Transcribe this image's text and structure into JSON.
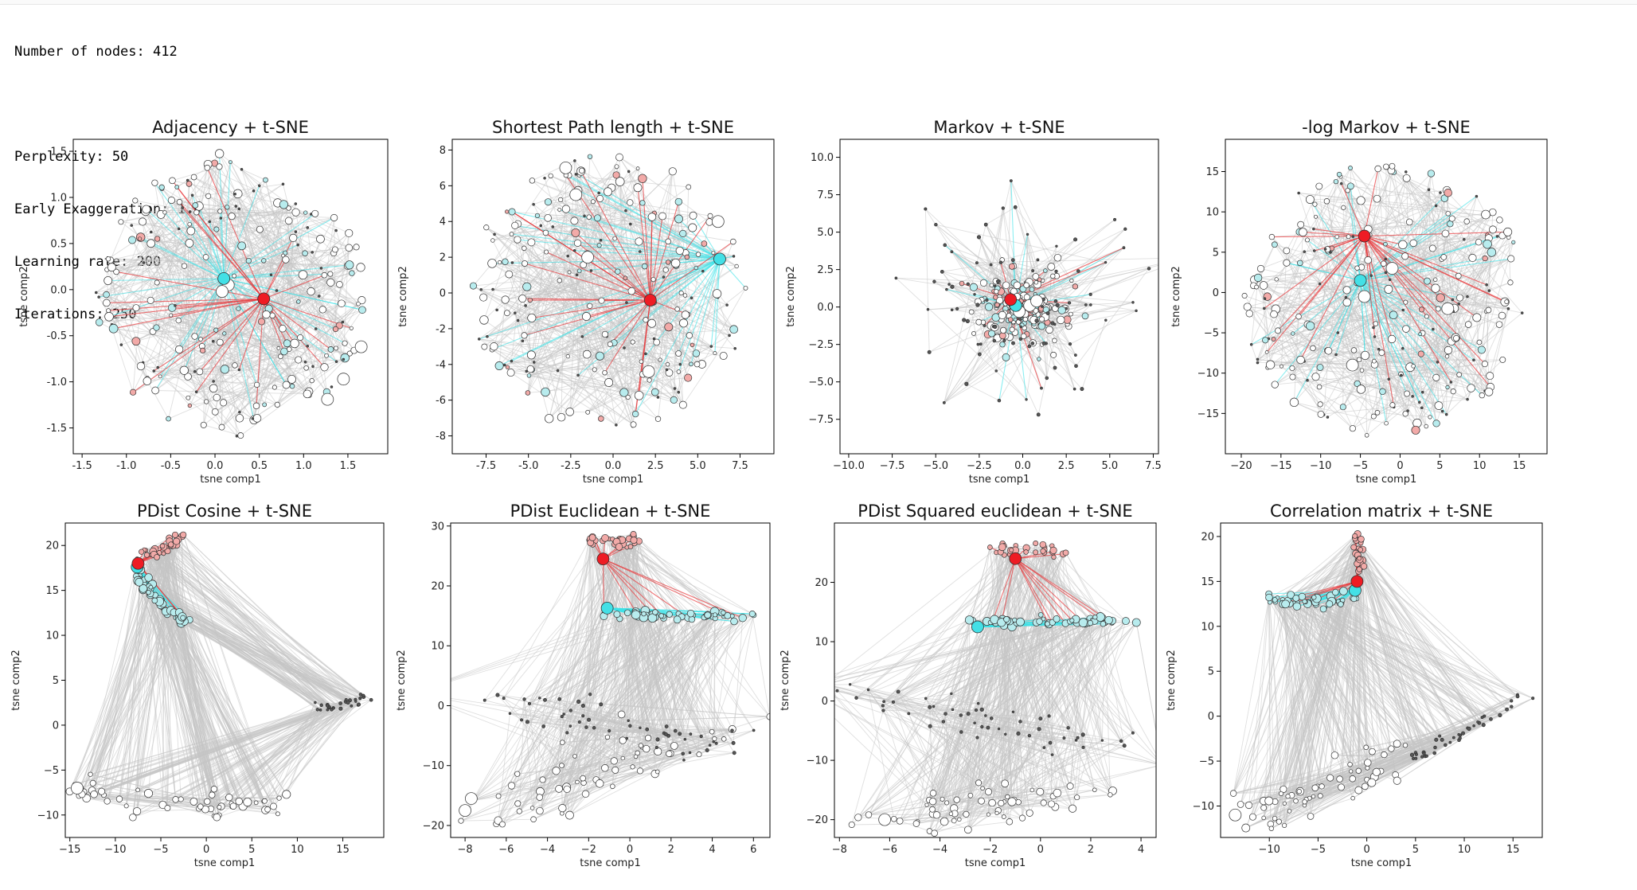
{
  "output_lines": [
    "Number of nodes: 412",
    "",
    "Perplexity: 50",
    "Early Exaggeration: 1.0",
    "Learning rate: 200",
    "Iterations: 250"
  ],
  "colors": {
    "edge_gray": "#c4c4c4",
    "edge_red": "#e8373a",
    "edge_cyan": "#3ce2e8",
    "node_red": "#ee1c24",
    "node_cyan": "#43e0e6",
    "node_pink": "#f2aaa8",
    "node_light_cyan": "#b8ecee",
    "node_white": "#ffffff",
    "node_dark": "#555555"
  },
  "chart_data": [
    {
      "type": "scatter",
      "title": "Adjacency + t-SNE",
      "xlabel": "tsne comp1",
      "ylabel": "tsne comp2",
      "xlim": [
        -1.6,
        1.95
      ],
      "ylim": [
        -1.78,
        1.63
      ],
      "xticks": [
        "-1.5",
        "-1.0",
        "-0.5",
        "0.0",
        "0.5",
        "1.0",
        "1.5"
      ],
      "yticks": [
        "-1.5",
        "-1.0",
        "-0.5",
        "0.0",
        "0.5",
        "1.0",
        "1.5"
      ],
      "highlight_red": {
        "x": 0.55,
        "y": -0.1
      },
      "highlight_cyan": {
        "x": 0.1,
        "y": 0.12
      },
      "big_nodes": [
        [
          0.15,
          0.05
        ],
        [
          0.08,
          -0.02
        ],
        [
          1.65,
          -0.62
        ],
        [
          1.45,
          -0.97
        ],
        [
          1.27,
          -1.19
        ]
      ]
    },
    {
      "type": "scatter",
      "title": "Shortest Path length + t-SNE",
      "xlabel": "tsne comp1",
      "ylabel": "tsne comp2",
      "xlim": [
        -9.5,
        9.5
      ],
      "ylim": [
        -9.0,
        8.6
      ],
      "xticks": [
        "-7.5",
        "-5.0",
        "-2.5",
        "0.0",
        "2.5",
        "5.0",
        "7.5"
      ],
      "yticks": [
        "-8",
        "-6",
        "-4",
        "-2",
        "0",
        "2",
        "4",
        "6",
        "8"
      ],
      "highlight_red": {
        "x": 2.2,
        "y": -0.4
      },
      "highlight_cyan": {
        "x": 6.3,
        "y": 1.9
      },
      "big_nodes": [
        [
          -2.2,
          5.5
        ],
        [
          -1.5,
          2.0
        ],
        [
          2.1,
          -4.4
        ],
        [
          6.2,
          4.0
        ],
        [
          -2.8,
          7.0
        ]
      ]
    },
    {
      "type": "scatter",
      "title": "Markov + t-SNE",
      "xlabel": "tsne comp1",
      "ylabel": "tsne comp2",
      "xlim": [
        -10.5,
        7.8
      ],
      "ylim": [
        -9.8,
        11.2
      ],
      "xticks": [
        "−10.0",
        "−7.5",
        "−5.0",
        "−2.5",
        "0.0",
        "2.5",
        "5.0",
        "7.5"
      ],
      "yticks": [
        "−7.5",
        "−5.0",
        "−2.5",
        "0.0",
        "2.5",
        "5.0",
        "7.5",
        "10.0"
      ],
      "highlight_red": {
        "x": -0.7,
        "y": 0.5
      },
      "highlight_cyan": {
        "x": -0.4,
        "y": 0.1
      },
      "big_nodes": [
        [
          0.4,
          0.1
        ],
        [
          -0.2,
          -0.3
        ],
        [
          0.8,
          0.4
        ]
      ]
    },
    {
      "type": "scatter",
      "title": "-log Markov + t-SNE",
      "xlabel": "tsne comp1",
      "ylabel": "tsne comp2",
      "xlim": [
        -22,
        18.5
      ],
      "ylim": [
        -20,
        19
      ],
      "xticks": [
        "−20",
        "−15",
        "−10",
        "−5",
        "0",
        "5",
        "10",
        "15"
      ],
      "yticks": [
        "−15",
        "−10",
        "−5",
        "0",
        "5",
        "10",
        "15"
      ],
      "highlight_red": {
        "x": -4.5,
        "y": 7.0
      },
      "highlight_cyan": {
        "x": -5.0,
        "y": 1.5
      },
      "big_nodes": [
        [
          -1.0,
          3.0
        ],
        [
          -4.5,
          -0.5
        ],
        [
          6.0,
          -2.0
        ],
        [
          -6.0,
          -9.0
        ]
      ]
    },
    {
      "type": "scatter",
      "title": "PDist Cosine + t-SNE",
      "xlabel": "tsne comp1",
      "ylabel": "tsne comp2",
      "xlim": [
        -15.5,
        19.5
      ],
      "ylim": [
        -12.5,
        22.5
      ],
      "xticks": [
        "−15",
        "−10",
        "−5",
        "0",
        "5",
        "10",
        "15"
      ],
      "yticks": [
        "−10",
        "−5",
        "0",
        "5",
        "10",
        "15",
        "20"
      ],
      "highlight_red": {
        "x": -7.5,
        "y": 18.0
      },
      "highlight_cyan": {
        "x": -7.6,
        "y": 17.6
      },
      "big_nodes": [
        [
          -14.2,
          -7.0
        ]
      ]
    },
    {
      "type": "scatter",
      "title": "PDist Euclidean + t-SNE",
      "xlabel": "tsne comp1",
      "ylabel": "tsne comp2",
      "xlim": [
        -8.7,
        6.8
      ],
      "ylim": [
        -22,
        30.5
      ],
      "xticks": [
        "−8",
        "−6",
        "−4",
        "−2",
        "0",
        "2",
        "4",
        "6"
      ],
      "yticks": [
        "−20",
        "−10",
        "0",
        "10",
        "20",
        "30"
      ],
      "highlight_red": {
        "x": -1.3,
        "y": 24.5
      },
      "highlight_cyan": {
        "x": -1.1,
        "y": 16.3
      },
      "big_nodes": [
        [
          -7.7,
          -15.5
        ],
        [
          -8.0,
          -17.5
        ]
      ]
    },
    {
      "type": "scatter",
      "title": "PDist Squared euclidean + t-SNE",
      "xlabel": "tsne comp1",
      "ylabel": "tsne comp2",
      "xlim": [
        -8.2,
        4.6
      ],
      "ylim": [
        -23,
        30
      ],
      "xticks": [
        "−8",
        "−6",
        "−4",
        "−2",
        "0",
        "2",
        "4"
      ],
      "yticks": [
        "−20",
        "−10",
        "0",
        "10",
        "20"
      ],
      "highlight_red": {
        "x": -1.0,
        "y": 24.0
      },
      "highlight_cyan": {
        "x": -2.5,
        "y": 12.5
      },
      "big_nodes": [
        [
          -6.2,
          -20.0
        ]
      ]
    },
    {
      "type": "scatter",
      "title": "Correlation matrix + t-SNE",
      "xlabel": "tsne comp1",
      "ylabel": "tsne comp2",
      "xlim": [
        -15,
        18
      ],
      "ylim": [
        -13.5,
        21.5
      ],
      "xticks": [
        "−10",
        "−5",
        "0",
        "5",
        "10",
        "15"
      ],
      "yticks": [
        "−10",
        "−5",
        "0",
        "5",
        "10",
        "15",
        "20"
      ],
      "highlight_red": {
        "x": -1.0,
        "y": 15.0
      },
      "highlight_cyan": {
        "x": -1.2,
        "y": 14.0
      },
      "big_nodes": [
        [
          -13.5,
          -11.0
        ]
      ]
    }
  ]
}
